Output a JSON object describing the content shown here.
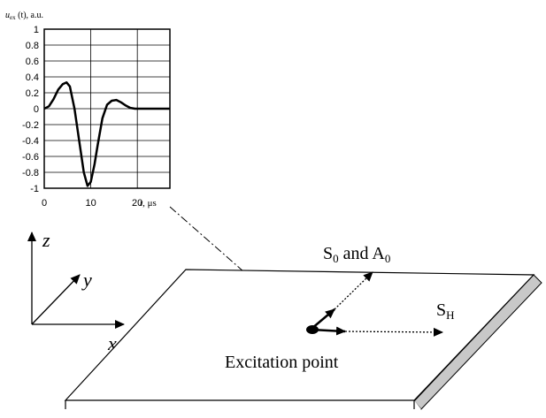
{
  "chart_data": {
    "type": "line",
    "title": "",
    "ylabel_var": "u",
    "ylabel_sub": "ex",
    "ylabel_rest": " (t), a.u.",
    "xlabel_var": "t",
    "xlabel_rest": ", μs",
    "xlim": [
      0,
      27
    ],
    "ylim": [
      -1,
      1
    ],
    "grid": true,
    "x_ticks": [
      "0",
      "10",
      "20"
    ],
    "y_ticks": [
      "1",
      "0.8",
      "0.6",
      "0.4",
      "0.2",
      "0",
      "-0.2",
      "-0.4",
      "-0.6",
      "-0.8",
      "-1"
    ],
    "series": [
      {
        "x": [
          0,
          1,
          2,
          3,
          4,
          4.8,
          5.5,
          6.5,
          7.5,
          8.5,
          9.3,
          10,
          10.8,
          11.5,
          12.5,
          13.5,
          14.5,
          15.5,
          16.5,
          17.5,
          18.5,
          19.5,
          20.5,
          22,
          24,
          27
        ],
        "y": [
          0,
          0.03,
          0.12,
          0.24,
          0.31,
          0.33,
          0.28,
          0.0,
          -0.4,
          -0.8,
          -0.97,
          -0.92,
          -0.7,
          -0.45,
          -0.12,
          0.05,
          0.1,
          0.11,
          0.08,
          0.04,
          0.01,
          0.0,
          0.0,
          0.0,
          0.0,
          0.0
        ]
      }
    ]
  },
  "diagram": {
    "axes": {
      "z": "z",
      "y": "y",
      "x": "x"
    },
    "waves": {
      "s0a0_S": "S",
      "s0a0_sub1": "0",
      "s0a0_and": " and A",
      "s0a0_sub2": "0",
      "sh_S": "S",
      "sh_sub": "H"
    },
    "excitation_label": "Excitation point"
  }
}
